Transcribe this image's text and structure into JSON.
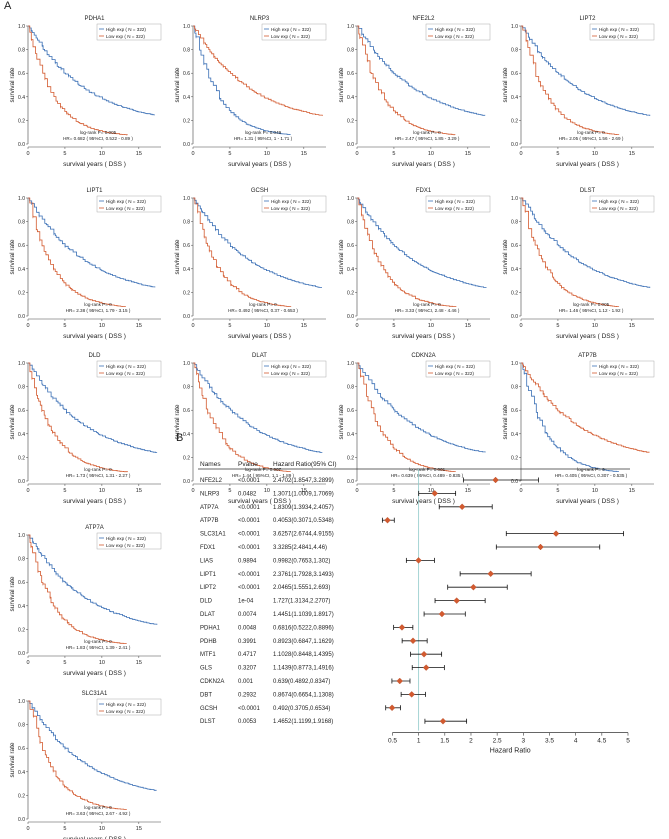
{
  "panel_labels": {
    "a": "A",
    "b": "B"
  },
  "km_common": {
    "xlabel": "survival years ( DSS )",
    "ylabel": "survival rate",
    "legend_high": "High exp ( N = 322)",
    "legend_low": "Low exp ( N = 322)",
    "xticks": [
      "0",
      "5",
      "10",
      "15"
    ],
    "yticks": [
      "0.0",
      "0.2",
      "0.4",
      "0.6",
      "0.8",
      "1.0"
    ],
    "colors": {
      "high": "#3a6fb5",
      "low": "#d35a2f"
    }
  },
  "chart_data": [
    {
      "type": "line",
      "title": "PDHA1",
      "pval": "log-rank P= 0.005",
      "hr": "HR= 0.682 ( 95%CI, 0.522 - 0.89 )",
      "high_worse": false,
      "xlim": [
        0,
        18
      ],
      "ylim": [
        0,
        1
      ]
    },
    {
      "type": "line",
      "title": "NLRP3",
      "pval": "log-rank P= 0.049",
      "hr": "HR= 1.31 ( 95%CI, 1 - 1.71 )",
      "high_worse": true,
      "xlim": [
        0,
        18
      ],
      "ylim": [
        0,
        1
      ]
    },
    {
      "type": "line",
      "title": "NFE2L2",
      "pval": "log-rank P= 0",
      "hr": "HR= 2.47 ( 95%CI, 1.85 - 3.29 )",
      "high_worse": false,
      "xlim": [
        0,
        18
      ],
      "ylim": [
        0,
        1
      ]
    },
    {
      "type": "line",
      "title": "LIPT2",
      "pval": "log-rank P= 0",
      "hr": "HR= 2.05 ( 95%CI, 1.56 - 2.69 )",
      "high_worse": false,
      "xlim": [
        0,
        18
      ],
      "ylim": [
        0,
        1
      ]
    },
    {
      "type": "line",
      "title": "LIPT1",
      "pval": "log-rank P= 0",
      "hr": "HR= 2.38 ( 95%CI, 1.79 - 3.15 )",
      "high_worse": false,
      "xlim": [
        0,
        18
      ],
      "ylim": [
        0,
        1
      ]
    },
    {
      "type": "line",
      "title": "GCSH",
      "pval": "log-rank P= 0",
      "hr": "HR= 0.492 ( 95%CI, 0.37 - 0.653 )",
      "high_worse": false,
      "xlim": [
        0,
        18
      ],
      "ylim": [
        0,
        1
      ]
    },
    {
      "type": "line",
      "title": "FDX1",
      "pval": "log-rank P= 0",
      "hr": "HR= 3.33 ( 95%CI, 2.48 - 4.46 )",
      "high_worse": false,
      "xlim": [
        0,
        18
      ],
      "ylim": [
        0,
        1
      ]
    },
    {
      "type": "line",
      "title": "DLST",
      "pval": "log-rank P= 0.005",
      "hr": "HR= 1.46 ( 95%CI, 1.12 - 1.92 )",
      "high_worse": false,
      "xlim": [
        0,
        18
      ],
      "ylim": [
        0,
        1
      ]
    },
    {
      "type": "line",
      "title": "DLD",
      "pval": "log-rank P= 0",
      "hr": "HR= 1.73 ( 95%CI, 1.31 - 2.27 )",
      "high_worse": false,
      "xlim": [
        0,
        18
      ],
      "ylim": [
        0,
        1
      ]
    },
    {
      "type": "line",
      "title": "DLAT",
      "pval": "log-rank P= 0.007",
      "hr": "HR= 1.44 ( 95%CI, 1.1 - 1.89 )",
      "high_worse": false,
      "xlim": [
        0,
        18
      ],
      "ylim": [
        0,
        1
      ]
    },
    {
      "type": "line",
      "title": "CDKN2A",
      "pval": "log-rank P= 0.001",
      "hr": "HR= 0.639 ( 95%CI, 0.489 - 0.835 )",
      "high_worse": false,
      "xlim": [
        0,
        18
      ],
      "ylim": [
        0,
        1
      ]
    },
    {
      "type": "line",
      "title": "ATP7B",
      "pval": "log-rank P= 0",
      "hr": "HR= 0.405 ( 95%CI, 0.307 - 0.535 )",
      "high_worse": true,
      "xlim": [
        0,
        18
      ],
      "ylim": [
        0,
        1
      ]
    },
    {
      "type": "line",
      "title": "ATP7A",
      "pval": "log-rank P= 0",
      "hr": "HR= 1.83 ( 95%CI, 1.39 - 2.41 )",
      "high_worse": false,
      "xlim": [
        0,
        18
      ],
      "ylim": [
        0,
        1
      ]
    },
    {
      "type": "line",
      "title": "SLC31A1",
      "pval": "log-rank P= 0",
      "hr": "HR= 3.63 ( 95%CI, 2.67 - 4.92 )",
      "high_worse": false,
      "xlim": [
        0,
        18
      ],
      "ylim": [
        0,
        1
      ]
    },
    {
      "type": "forest",
      "headers": [
        "Names",
        "Pvalue",
        "Hazard Ratio(95% CI)"
      ],
      "xlabel": "Hazard Ratio",
      "xticks": [
        "0.5",
        "1",
        "1.5",
        "2",
        "2.5",
        "3",
        "3.5",
        "4",
        "4.5",
        "5"
      ],
      "xlim": [
        0.3,
        5
      ],
      "ref_line": 1,
      "rows": [
        {
          "name": "NFE2L2",
          "p": "<0.0001",
          "hr_text": "2.4702(1.8547,3.2899)",
          "hr": 2.4702,
          "lo": 1.8547,
          "hi": 3.2899
        },
        {
          "name": "NLRP3",
          "p": "0.0482",
          "hr_text": "1.3071(1.0009,1.7069)",
          "hr": 1.3071,
          "lo": 1.0009,
          "hi": 1.7069
        },
        {
          "name": "ATP7A",
          "p": "<0.0001",
          "hr_text": "1.8309(1.3934,2.4057)",
          "hr": 1.8309,
          "lo": 1.3934,
          "hi": 2.4057
        },
        {
          "name": "ATP7B",
          "p": "<0.0001",
          "hr_text": "0.4053(0.3071,0.5348)",
          "hr": 0.4053,
          "lo": 0.3071,
          "hi": 0.5348
        },
        {
          "name": "SLC31A1",
          "p": "<0.0001",
          "hr_text": "3.6257(2.6744,4.9155)",
          "hr": 3.6257,
          "lo": 2.6744,
          "hi": 4.9155
        },
        {
          "name": "FDX1",
          "p": "<0.0001",
          "hr_text": "3.3285(2.4841,4.46)",
          "hr": 3.3285,
          "lo": 2.4841,
          "hi": 4.46
        },
        {
          "name": "LIAS",
          "p": "0.9894",
          "hr_text": "0.9982(0.7653,1.302)",
          "hr": 0.9982,
          "lo": 0.7653,
          "hi": 1.302
        },
        {
          "name": "LIPT1",
          "p": "<0.0001",
          "hr_text": "2.3761(1.7928,3.1493)",
          "hr": 2.3761,
          "lo": 1.7928,
          "hi": 3.1493
        },
        {
          "name": "LIPT2",
          "p": "<0.0001",
          "hr_text": "2.0465(1.5551,2.693)",
          "hr": 2.0465,
          "lo": 1.5551,
          "hi": 2.693
        },
        {
          "name": "DLD",
          "p": "1e-04",
          "hr_text": "1.727(1.3134,2.2707)",
          "hr": 1.727,
          "lo": 1.3134,
          "hi": 2.2707
        },
        {
          "name": "DLAT",
          "p": "0.0074",
          "hr_text": "1.4451(1.1039,1.8917)",
          "hr": 1.4451,
          "lo": 1.1039,
          "hi": 1.8917
        },
        {
          "name": "PDHA1",
          "p": "0.0048",
          "hr_text": "0.6816(0.5222,0.8896)",
          "hr": 0.6816,
          "lo": 0.5222,
          "hi": 0.8896
        },
        {
          "name": "PDHB",
          "p": "0.3991",
          "hr_text": "0.8923(0.6847,1.1629)",
          "hr": 0.8923,
          "lo": 0.6847,
          "hi": 1.1629
        },
        {
          "name": "MTF1",
          "p": "0.4717",
          "hr_text": "1.1028(0.8448,1.4395)",
          "hr": 1.1028,
          "lo": 0.8448,
          "hi": 1.4395
        },
        {
          "name": "GLS",
          "p": "0.3207",
          "hr_text": "1.1439(0.8773,1.4916)",
          "hr": 1.1439,
          "lo": 0.8773,
          "hi": 1.4916
        },
        {
          "name": "CDKN2A",
          "p": "0.001",
          "hr_text": "0.639(0.4892,0.8347)",
          "hr": 0.639,
          "lo": 0.4892,
          "hi": 0.8347
        },
        {
          "name": "DBT",
          "p": "0.2932",
          "hr_text": "0.8674(0.6654,1.1308)",
          "hr": 0.8674,
          "lo": 0.6654,
          "hi": 1.1308
        },
        {
          "name": "GCSH",
          "p": "<0.0001",
          "hr_text": "0.492(0.3705,0.6534)",
          "hr": 0.492,
          "lo": 0.3705,
          "hi": 0.6534
        },
        {
          "name": "DLST",
          "p": "0.0053",
          "hr_text": "1.4652(1.1199,1.9168)",
          "hr": 1.4652,
          "lo": 1.1199,
          "hi": 1.9168
        }
      ]
    }
  ]
}
